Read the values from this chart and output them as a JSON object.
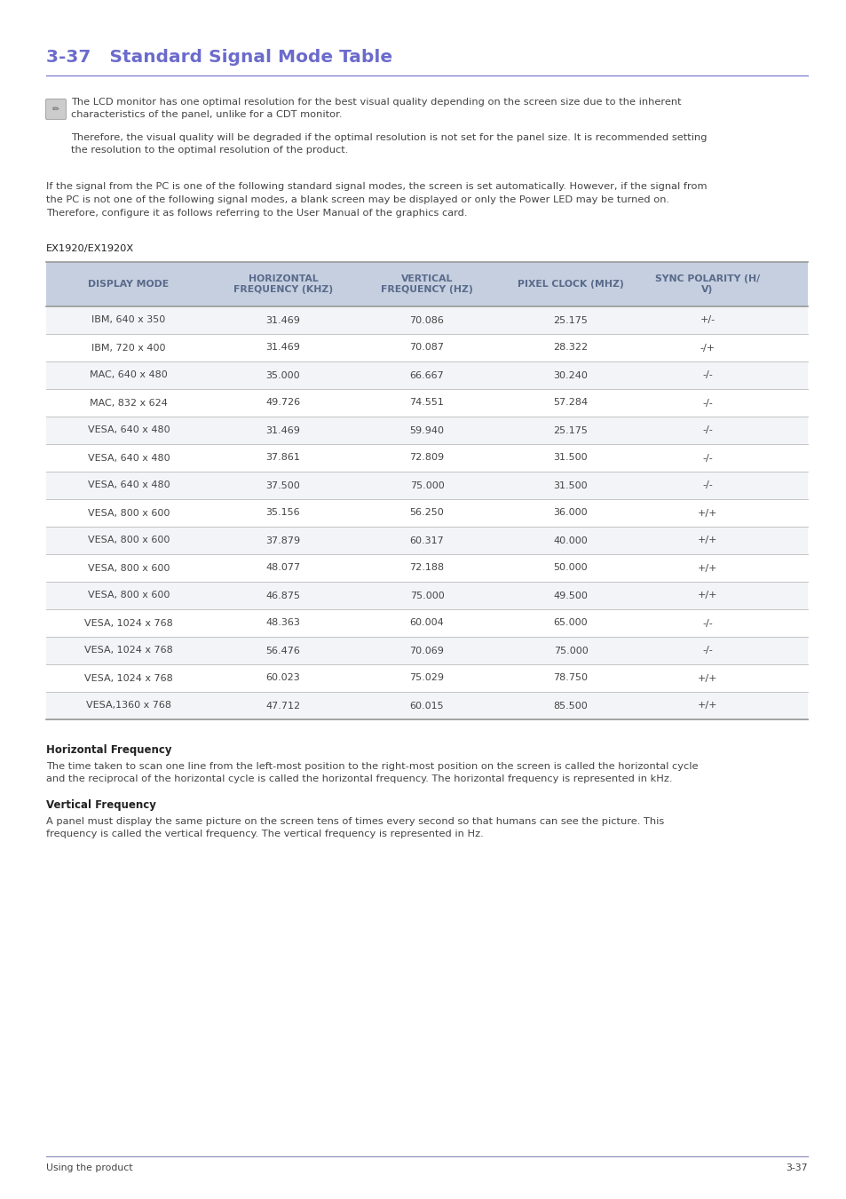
{
  "title": "3-37   Standard Signal Mode Table",
  "title_color": "#6b6bcc",
  "page_bg": "#ffffff",
  "note_text_line1": "The LCD monitor has one optimal resolution for the best visual quality depending on the screen size due to the inherent",
  "note_text_line2": "characteristics of the panel, unlike for a CDT monitor.",
  "note_text_line3": "Therefore, the visual quality will be degraded if the optimal resolution is not set for the panel size. It is recommended setting",
  "note_text_line4": "the resolution to the optimal resolution of the product.",
  "body_text_line1": "If the signal from the PC is one of the following standard signal modes, the screen is set automatically. However, if the signal from",
  "body_text_line2": "the PC is not one of the following signal modes, a blank screen may be displayed or only the Power LED may be turned on.",
  "body_text_line3": "Therefore, configure it as follows referring to the User Manual of the graphics card.",
  "model_label": "EX1920/EX1920X",
  "table_header_bg": "#c5cfe0",
  "table_header_text_color": "#5a6a8a",
  "table_row_bg_odd": "#f2f4f7",
  "table_row_bg_even": "#ffffff",
  "table_border_color_dark": "#999999",
  "table_border_color_light": "#bbbbbb",
  "table_header": [
    "DISPLAY MODE",
    "HORIZONTAL\nFREQUENCY (KHZ)",
    "VERTICAL\nFREQUENCY (HZ)",
    "PIXEL CLOCK (MHZ)",
    "SYNC POLARITY (H/\nV)"
  ],
  "table_data": [
    [
      "IBM, 640 x 350",
      "31.469",
      "70.086",
      "25.175",
      "+/-"
    ],
    [
      "IBM, 720 x 400",
      "31.469",
      "70.087",
      "28.322",
      "-/+"
    ],
    [
      "MAC, 640 x 480",
      "35.000",
      "66.667",
      "30.240",
      "-/-"
    ],
    [
      "MAC, 832 x 624",
      "49.726",
      "74.551",
      "57.284",
      "-/-"
    ],
    [
      "VESA, 640 x 480",
      "31.469",
      "59.940",
      "25.175",
      "-/-"
    ],
    [
      "VESA, 640 x 480",
      "37.861",
      "72.809",
      "31.500",
      "-/-"
    ],
    [
      "VESA, 640 x 480",
      "37.500",
      "75.000",
      "31.500",
      "-/-"
    ],
    [
      "VESA, 800 x 600",
      "35.156",
      "56.250",
      "36.000",
      "+/+"
    ],
    [
      "VESA, 800 x 600",
      "37.879",
      "60.317",
      "40.000",
      "+/+"
    ],
    [
      "VESA, 800 x 600",
      "48.077",
      "72.188",
      "50.000",
      "+/+"
    ],
    [
      "VESA, 800 x 600",
      "46.875",
      "75.000",
      "49.500",
      "+/+"
    ],
    [
      "VESA, 1024 x 768",
      "48.363",
      "60.004",
      "65.000",
      "-/-"
    ],
    [
      "VESA, 1024 x 768",
      "56.476",
      "70.069",
      "75.000",
      "-/-"
    ],
    [
      "VESA, 1024 x 768",
      "60.023",
      "75.029",
      "78.750",
      "+/+"
    ],
    [
      "VESA,1360 x 768",
      "47.712",
      "60.015",
      "85.500",
      "+/+"
    ]
  ],
  "hf_title": "Horizontal Frequency",
  "hf_text": "The time taken to scan one line from the left-most position to the right-most position on the screen is called the horizontal cycle\nand the reciprocal of the horizontal cycle is called the horizontal frequency. The horizontal frequency is represented in kHz.",
  "vf_title": "Vertical Frequency",
  "vf_text": "A panel must display the same picture on the screen tens of times every second so that humans can see the picture. This\nfrequency is called the vertical frequency. The vertical frequency is represented in Hz.",
  "footer_left": "Using the product",
  "footer_right": "3-37",
  "footer_line_color": "#8888bb",
  "text_color": "#444444",
  "text_color_dark": "#222222"
}
